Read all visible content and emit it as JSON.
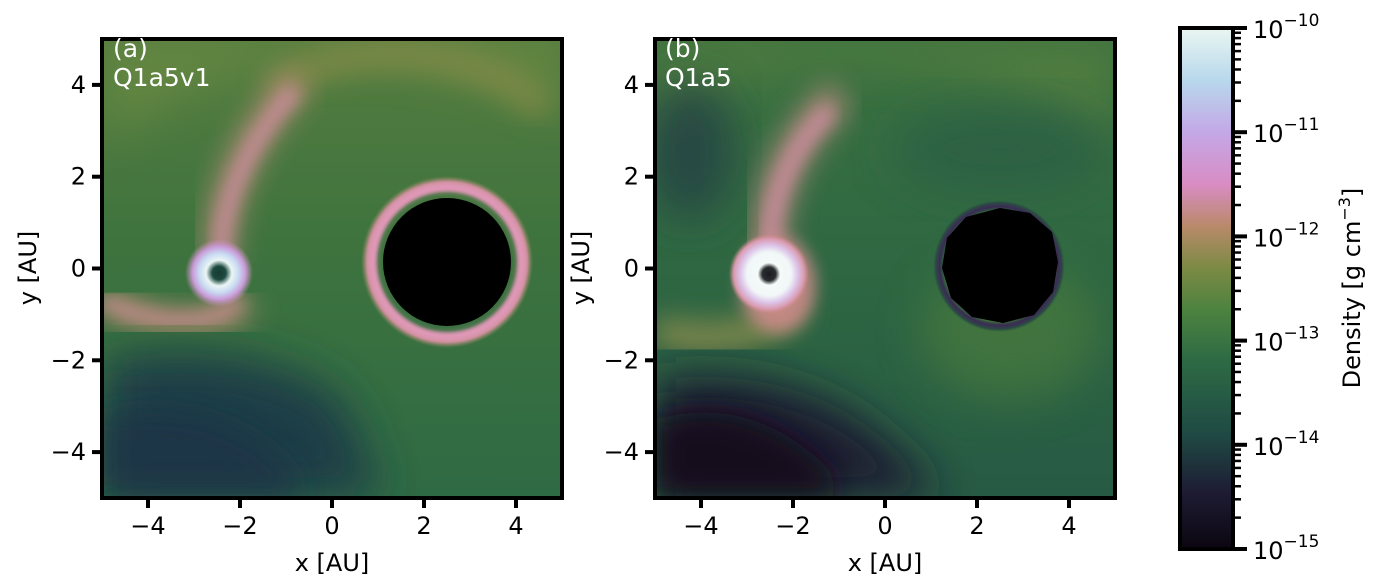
{
  "figure": {
    "colorbar": {
      "label": "Density [g cm",
      "label_superscript": "−3",
      "label_close": "]",
      "scale": "log",
      "range": [
        1e-15,
        1e-10
      ],
      "ticks": [
        {
          "exp": -10,
          "base": "10",
          "sup": "−10"
        },
        {
          "exp": -11,
          "base": "10",
          "sup": "−11"
        },
        {
          "exp": -12,
          "base": "10",
          "sup": "−12"
        },
        {
          "exp": -13,
          "base": "10",
          "sup": "−13"
        },
        {
          "exp": -14,
          "base": "10",
          "sup": "−14"
        },
        {
          "exp": -15,
          "base": "10",
          "sup": "−15"
        }
      ],
      "colormap": "cubehelix-like",
      "colors": [
        "#0b0610",
        "#1e1c33",
        "#1f4a44",
        "#3f7b3f",
        "#7c8a45",
        "#c98a7a",
        "#d98cc4",
        "#c3a8e6",
        "#b8d8ec",
        "#eaf6f2"
      ]
    }
  },
  "chart_data": [
    {
      "type": "heatmap",
      "panel_tag": "(a)",
      "model": "Q1a5v1",
      "xlabel": "x [AU]",
      "ylabel": "y [AU]",
      "xlim": [
        -5,
        5
      ],
      "ylim": [
        -5,
        5
      ],
      "xticks": [
        -4,
        -2,
        0,
        2,
        4
      ],
      "yticks": [
        -4,
        -2,
        0,
        2,
        4
      ],
      "xtick_labels": [
        "−4",
        "−2",
        "0",
        "2",
        "4"
      ],
      "ytick_labels": [
        "−4",
        "−2",
        "0",
        "2",
        "4"
      ],
      "features": {
        "small_body": {
          "center": [
            -2.5,
            -0.1
          ],
          "radius": 0.35,
          "peak_log_density": -10.6
        },
        "sink_hole": {
          "center": [
            2.5,
            0.0
          ],
          "radius": 1.4,
          "rim_radius": 1.65,
          "rim_log_density": -11.9
        },
        "spiral_arm_peak_log_density": -12.3,
        "background_log_density": -13.1,
        "low_density_region_log_density": -14.0
      }
    },
    {
      "type": "heatmap",
      "panel_tag": "(b)",
      "model": "Q1a5",
      "xlabel": "x [AU]",
      "ylabel": "y [AU]",
      "xlim": [
        -5,
        5
      ],
      "ylim": [
        -5,
        5
      ],
      "xticks": [
        -4,
        -2,
        0,
        2,
        4
      ],
      "yticks": [
        -4,
        -2,
        0,
        2,
        4
      ],
      "xtick_labels": [
        "−4",
        "−2",
        "0",
        "2",
        "4"
      ],
      "ytick_labels": [
        "−4",
        "−2",
        "0",
        "2",
        "4"
      ],
      "features": {
        "small_body": {
          "center": [
            -2.5,
            -0.1
          ],
          "radius": 0.45,
          "peak_log_density": -10.3
        },
        "sink_hole": {
          "center": [
            2.5,
            0.2
          ],
          "radius": 1.25,
          "rim_radius": 1.35,
          "rim_log_density": -14.5
        },
        "spiral_arm_peak_log_density": -12.3,
        "background_log_density": -13.3,
        "low_density_region_log_density": -14.7
      }
    }
  ]
}
